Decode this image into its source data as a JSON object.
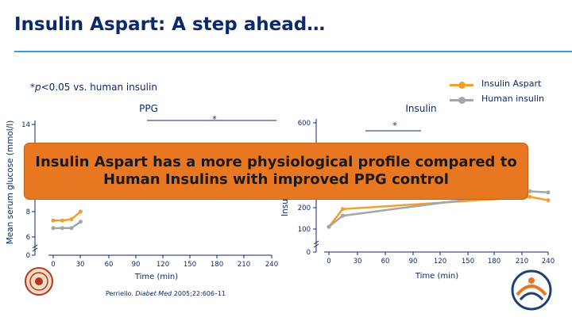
{
  "header": {
    "title": "Insulin Aspart: A step ahead…"
  },
  "footnote": {
    "prefix": "*",
    "p": "p",
    "rest": "<0.05 vs. human insulin"
  },
  "legend": [
    {
      "label": "Insulin Aspart",
      "color": "#f0a030"
    },
    {
      "label": "Human insulin",
      "color": "#a6a6a6"
    }
  ],
  "callout": "Insulin Aspart has a more physiological profile compared to\nHuman Insulins with improved PPG control",
  "citation": {
    "author": "Perriello.",
    "journal": "Diabet Med",
    "rest": "2005;22:606–11"
  },
  "chart_data": [
    {
      "type": "line",
      "title": "PPG",
      "ylabel": "Mean serum glucose (mmol/l)",
      "xlabel": "Time (min)",
      "x_ticks": [
        0,
        30,
        60,
        90,
        120,
        150,
        180,
        210,
        240
      ],
      "y_ticks": [
        "0",
        "6",
        "8",
        "14"
      ],
      "annotations": [
        "*"
      ],
      "series": [
        {
          "name": "Insulin Aspart",
          "color": "#f0a030",
          "x": [
            0,
            10,
            20,
            30
          ],
          "y": [
            7.3,
            7.3,
            7.4,
            8.0
          ]
        },
        {
          "name": "Human insulin",
          "color": "#a6a6a6",
          "x": [
            0,
            10,
            20,
            30
          ],
          "y": [
            6.7,
            6.7,
            6.7,
            7.2
          ]
        }
      ]
    },
    {
      "type": "line",
      "title": "Insulin",
      "ylabel": "Insu",
      "xlabel": "Time (min)",
      "x_ticks": [
        0,
        30,
        60,
        90,
        120,
        150,
        180,
        210,
        240
      ],
      "y_ticks": [
        "0",
        "100",
        "200",
        "600"
      ],
      "annotations": [
        "*"
      ],
      "series": [
        {
          "name": "Insulin Aspart",
          "color": "#f0a030",
          "x": [
            0,
            15,
            220,
            240
          ],
          "y": [
            110,
            190,
            245,
            230
          ]
        },
        {
          "name": "Human insulin",
          "color": "#a6a6a6",
          "x": [
            0,
            15,
            220,
            240
          ],
          "y": [
            110,
            160,
            270,
            265
          ]
        }
      ]
    }
  ]
}
